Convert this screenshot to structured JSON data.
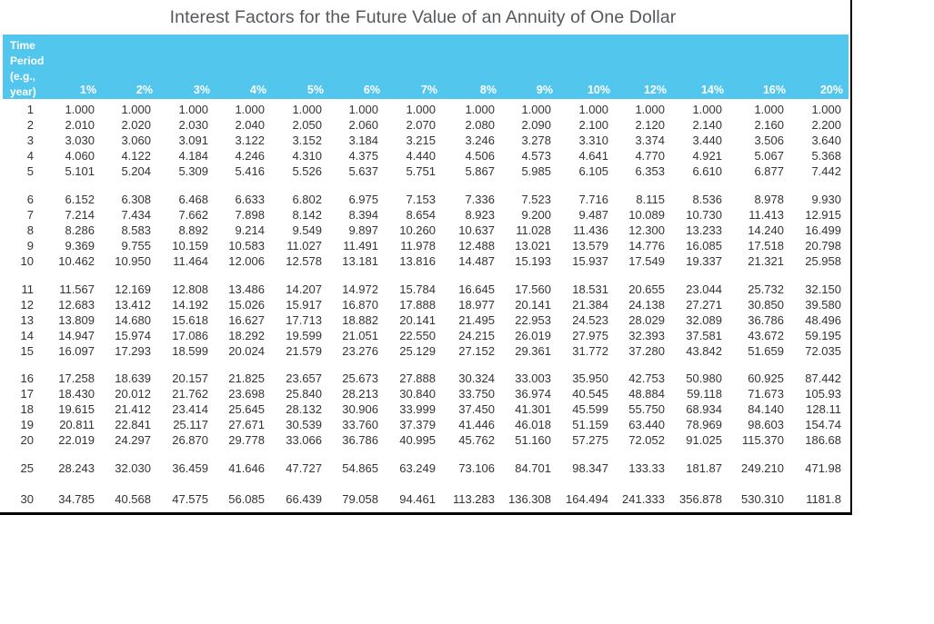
{
  "title": "Interest Factors for the Future Value of an Annuity of One Dollar",
  "header": {
    "time_period_lines": [
      "Time",
      "Period",
      "(e.g.,",
      "year)"
    ],
    "rates": [
      "1%",
      "2%",
      "3%",
      "4%",
      "5%",
      "6%",
      "7%",
      "8%",
      "9%",
      "10%",
      "12%",
      "14%",
      "16%",
      "20%"
    ]
  },
  "colors": {
    "header_bg": "#52c6ed",
    "header_text": "#ffffff",
    "title_text": "#55585c",
    "body_text": "#333333"
  },
  "rows": [
    {
      "period": "1",
      "values": [
        "1.000",
        "1.000",
        "1.000",
        "1.000",
        "1.000",
        "1.000",
        "1.000",
        "1.000",
        "1.000",
        "1.000",
        "1.000",
        "1.000",
        "1.000",
        "1.000"
      ]
    },
    {
      "period": "2",
      "values": [
        "2.010",
        "2.020",
        "2.030",
        "2.040",
        "2.050",
        "2.060",
        "2.070",
        "2.080",
        "2.090",
        "2.100",
        "2.120",
        "2.140",
        "2.160",
        "2.200"
      ]
    },
    {
      "period": "3",
      "values": [
        "3.030",
        "3.060",
        "3.091",
        "3.122",
        "3.152",
        "3.184",
        "3.215",
        "3.246",
        "3.278",
        "3.310",
        "3.374",
        "3.440",
        "3.506",
        "3.640"
      ]
    },
    {
      "period": "4",
      "values": [
        "4.060",
        "4.122",
        "4.184",
        "4.246",
        "4.310",
        "4.375",
        "4.440",
        "4.506",
        "4.573",
        "4.641",
        "4.770",
        "4.921",
        "5.067",
        "5.368"
      ]
    },
    {
      "period": "5",
      "values": [
        "5.101",
        "5.204",
        "5.309",
        "5.416",
        "5.526",
        "5.637",
        "5.751",
        "5.867",
        "5.985",
        "6.105",
        "6.353",
        "6.610",
        "6.877",
        "7.442"
      ]
    },
    {
      "period": "6",
      "values": [
        "6.152",
        "6.308",
        "6.468",
        "6.633",
        "6.802",
        "6.975",
        "7.153",
        "7.336",
        "7.523",
        "7.716",
        "8.115",
        "8.536",
        "8.978",
        "9.930"
      ]
    },
    {
      "period": "7",
      "values": [
        "7.214",
        "7.434",
        "7.662",
        "7.898",
        "8.142",
        "8.394",
        "8.654",
        "8.923",
        "9.200",
        "9.487",
        "10.089",
        "10.730",
        "11.413",
        "12.915"
      ]
    },
    {
      "period": "8",
      "values": [
        "8.286",
        "8.583",
        "8.892",
        "9.214",
        "9.549",
        "9.897",
        "10.260",
        "10.637",
        "11.028",
        "11.436",
        "12.300",
        "13.233",
        "14.240",
        "16.499"
      ]
    },
    {
      "period": "9",
      "values": [
        "9.369",
        "9.755",
        "10.159",
        "10.583",
        "11.027",
        "11.491",
        "11.978",
        "12.488",
        "13.021",
        "13.579",
        "14.776",
        "16.085",
        "17.518",
        "20.798"
      ]
    },
    {
      "period": "10",
      "values": [
        "10.462",
        "10.950",
        "11.464",
        "12.006",
        "12.578",
        "13.181",
        "13.816",
        "14.487",
        "15.193",
        "15.937",
        "17.549",
        "19.337",
        "21.321",
        "25.958"
      ]
    },
    {
      "period": "11",
      "values": [
        "11.567",
        "12.169",
        "12.808",
        "13.486",
        "14.207",
        "14.972",
        "15.784",
        "16.645",
        "17.560",
        "18.531",
        "20.655",
        "23.044",
        "25.732",
        "32.150"
      ]
    },
    {
      "period": "12",
      "values": [
        "12.683",
        "13.412",
        "14.192",
        "15.026",
        "15.917",
        "16.870",
        "17.888",
        "18.977",
        "20.141",
        "21.384",
        "24.138",
        "27.271",
        "30.850",
        "39.580"
      ]
    },
    {
      "period": "13",
      "values": [
        "13.809",
        "14.680",
        "15.618",
        "16.627",
        "17.713",
        "18.882",
        "20.141",
        "21.495",
        "22.953",
        "24.523",
        "28.029",
        "32.089",
        "36.786",
        "48.496"
      ]
    },
    {
      "period": "14",
      "values": [
        "14.947",
        "15.974",
        "17.086",
        "18.292",
        "19.599",
        "21.051",
        "22.550",
        "24.215",
        "26.019",
        "27.975",
        "32.393",
        "37.581",
        "43.672",
        "59.195"
      ]
    },
    {
      "period": "15",
      "values": [
        "16.097",
        "17.293",
        "18.599",
        "20.024",
        "21.579",
        "23.276",
        "25.129",
        "27.152",
        "29.361",
        "31.772",
        "37.280",
        "43.842",
        "51.659",
        "72.035"
      ]
    },
    {
      "period": "16",
      "values": [
        "17.258",
        "18.639",
        "20.157",
        "21.825",
        "23.657",
        "25.673",
        "27.888",
        "30.324",
        "33.003",
        "35.950",
        "42.753",
        "50.980",
        "60.925",
        "87.442"
      ]
    },
    {
      "period": "17",
      "values": [
        "18.430",
        "20.012",
        "21.762",
        "23.698",
        "25.840",
        "28.213",
        "30.840",
        "33.750",
        "36.974",
        "40.545",
        "48.884",
        "59.118",
        "71.673",
        "105.93"
      ]
    },
    {
      "period": "18",
      "values": [
        "19.615",
        "21.412",
        "23.414",
        "25.645",
        "28.132",
        "30.906",
        "33.999",
        "37.450",
        "41.301",
        "45.599",
        "55.750",
        "68.934",
        "84.140",
        "128.11"
      ]
    },
    {
      "period": "19",
      "values": [
        "20.811",
        "22.841",
        "25.117",
        "27.671",
        "30.539",
        "33.760",
        "37.379",
        "41.446",
        "46.018",
        "51.159",
        "63.440",
        "78.969",
        "98.603",
        "154.74"
      ]
    },
    {
      "period": "20",
      "values": [
        "22.019",
        "24.297",
        "26.870",
        "29.778",
        "33.066",
        "36.786",
        "40.995",
        "45.762",
        "51.160",
        "57.275",
        "72.052",
        "91.025",
        "115.370",
        "186.68"
      ]
    },
    {
      "period": "25",
      "values": [
        "28.243",
        "32.030",
        "36.459",
        "41.646",
        "47.727",
        "54.865",
        "63.249",
        "73.106",
        "84.701",
        "98.347",
        "133.33",
        "181.87",
        "249.210",
        "471.98"
      ]
    },
    {
      "period": "30",
      "values": [
        "34.785",
        "40.568",
        "47.575",
        "56.085",
        "66.439",
        "79.058",
        "94.461",
        "113.283",
        "136.308",
        "164.494",
        "241.333",
        "356.878",
        "530.310",
        "1181.8"
      ]
    }
  ]
}
